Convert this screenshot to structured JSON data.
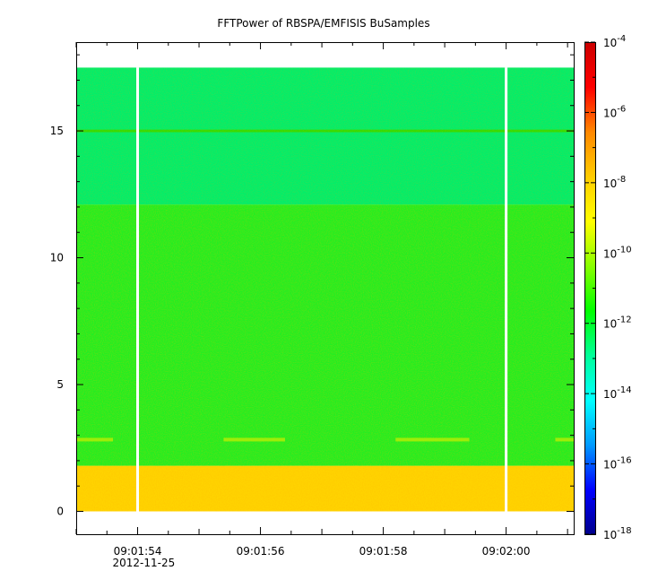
{
  "chart_data": {
    "type": "heatmap",
    "title": "FFTPower of RBSPA/EMFISIS  BuSamples",
    "xlabel": "",
    "ylabel": "",
    "x_ticks": [
      "09:01:54",
      "09:01:56",
      "09:01:58",
      "09:02:00"
    ],
    "x_sub_label": "2012-11-25",
    "x_range": [
      "09:01:53.0",
      "09:02:01.1"
    ],
    "y_range": [
      -0.9,
      18.5
    ],
    "y_ticks": [
      0,
      5,
      10,
      15
    ],
    "y_tick_labels": [
      "0",
      "5",
      "10",
      "15"
    ],
    "colorbar": {
      "scale": "log",
      "range_exponents": [
        -18,
        -4
      ],
      "tick_exponents": [
        -18,
        -16,
        -14,
        -12,
        -10,
        -8,
        -6,
        -4
      ],
      "colors": [
        "#00008b",
        "#0000ff",
        "#0099ff",
        "#00ffff",
        "#00ff99",
        "#00ff00",
        "#88ff00",
        "#ffff00",
        "#ffcc00",
        "#ff8800",
        "#ff0000",
        "#cc0000"
      ]
    },
    "bands": [
      {
        "y_from": 0.0,
        "y_to": 1.8,
        "level": "yellow-orange (~1e-8)"
      },
      {
        "y_from": 1.8,
        "y_to": 12.1,
        "level": "green (~1e-10)"
      },
      {
        "y_from": 12.1,
        "y_to": 17.5,
        "level": "cyan-green (~1e-11)"
      },
      {
        "y_from": 14.95,
        "y_to": 15.05,
        "level": "green line (~1e-10)"
      }
    ],
    "data_gaps_at": [
      "09:01:54.0",
      "09:02:00.0"
    ],
    "grid": false,
    "legend": "colorbar-right"
  }
}
